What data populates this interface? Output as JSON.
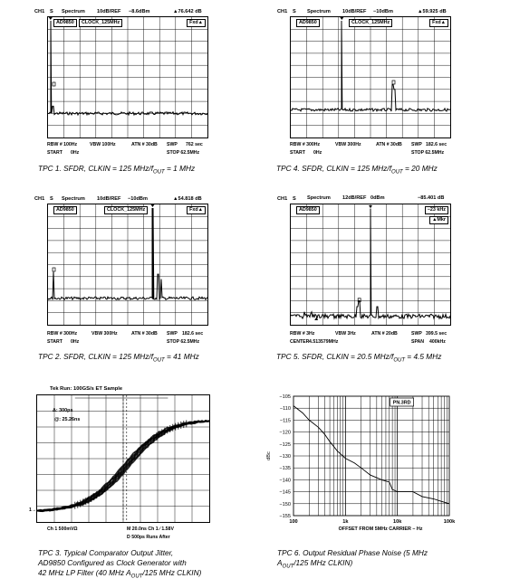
{
  "colors": {
    "ink": "#000000",
    "paper": "#ffffff"
  },
  "tpc1": {
    "ch": "CH1",
    "s": "S",
    "mode": "Spectrum",
    "scale": "10dB/REF",
    "ref": "−8.6dBm",
    "marker": "▲76.642 dB",
    "device": "AD9850",
    "clock": "CLOCK_125MHz",
    "fxd": "Fxd▲",
    "rbw": "RBW # 100Hz",
    "vbw": "VBW 100Hz",
    "atn": "ATN # 30dB",
    "swp": "SWP",
    "swp_val": "762 sec",
    "start": "START",
    "start_val": "0Hz",
    "stop": "STOP 62.5MHz",
    "cap_pre": "TPC 1.  SFDR, CLKIN = 125 MHz/f",
    "cap_sub": "OUT",
    "cap_post": " = 1 MHz"
  },
  "tpc2": {
    "ch": "CH1",
    "s": "S",
    "mode": "Spectrum",
    "scale": "10dB/REF",
    "ref": "−10dBm",
    "marker": "▲54.818 dB",
    "device": "AD9850",
    "clock": "CLOCK_125MHz",
    "fxd": "Fxd▲",
    "rbw": "RBW # 300Hz",
    "vbw": "VBW 300Hz",
    "atn": "ATN # 30dB",
    "swp": "SWP",
    "swp_val": "182.6 sec",
    "start": "START",
    "start_val": "0Hz",
    "stop": "STOP 62.5MHz",
    "cap_pre": "TPC 2.  SFDR, CLKIN = 125 MHz/f",
    "cap_sub": "OUT",
    "cap_post": " = 41 MHz"
  },
  "tpc3": {
    "title": "Tek Run: 100GS/s ET Sample",
    "delta": "Δ: 300ps",
    "at": "@: 25.26ns",
    "ch1": "Ch 1   500mVΩ",
    "time": "M 20.0ns  Ch 1 ∕   1.58V",
    "d": "D  500ps   Runs After",
    "gnd": "1→",
    "cap_l1": "TPC 3.  Typical Comparator Output Jitter,",
    "cap_l2": "AD9850 Configured as Clock Generator with",
    "cap_l3_pre": "42 MHz LP Filter (40 MHz A",
    "cap_l3_sub": "OUT",
    "cap_l3_post": "/125 MHz CLKIN)"
  },
  "tpc4": {
    "ch": "CH1",
    "s": "S",
    "mode": "Spectrum",
    "scale": "10dB/REF",
    "ref": "−10dBm",
    "marker": "▲59.925 dB",
    "device": "AD9850",
    "clock": "CLOCK_125MHz",
    "fxd": "Fxd▲",
    "rbw": "RBW # 300Hz",
    "vbw": "VBW 300Hz",
    "atn": "ATN # 30dB",
    "swp": "SWP",
    "swp_val": "182.6 sec",
    "start": "START",
    "start_val": "0Hz",
    "stop": "STOP 62.5MHz",
    "cap_pre": "TPC 4.  SFDR, CLKIN = 125 MHz/f",
    "cap_sub": "OUT",
    "cap_post": " = 20 MHz"
  },
  "tpc5": {
    "ch": "CH1",
    "s": "S",
    "mode": "Spectrum",
    "scale": "12dB/REF",
    "ref": "0dBm",
    "marker": "−85.401 dB",
    "device": "AD9850",
    "freq": "−23 kHz",
    "mkr": "▲Mkr",
    "rbw": "RBW # 3Hz",
    "vbw": "VBW 3Hz",
    "atn": "ATN # 20dB",
    "swp": "SWP",
    "swp_val": "399.5 sec",
    "center": "CENTER",
    "center_val": "4.513579MHz",
    "span": "SPAN",
    "span_val": "400kHz",
    "cap_pre": "TPC 5.  SFDR, CLKIN = 20.5 MHz/f",
    "cap_sub": "OUT",
    "cap_post": " = 4.5 MHz"
  },
  "tpc6": {
    "legend": "PN.3RD",
    "ylabel": "dBc",
    "xlabel": "OFFSET FROM 5MHz CARRIER – Hz",
    "cap_l1": "TPC 6.  Output Residual Phase Noise (5 MHz",
    "cap_l2_pre": "A",
    "cap_l2_sub": "OUT",
    "cap_l2_post": "/125 MHz CLKIN)"
  },
  "chart_data": [
    {
      "type": "line",
      "title": "",
      "x_range_mhz": [
        0,
        62.5
      ],
      "y_divisions": 10,
      "fundamental_mhz": 1,
      "marker_db": 76.642
    },
    {
      "type": "line",
      "title": "",
      "x_range_mhz": [
        0,
        62.5
      ],
      "y_divisions": 10,
      "fundamental_mhz": 41,
      "marker_db": 54.818
    },
    {
      "type": "line",
      "title": "",
      "x_label": "time",
      "transition": "rising edge, jitter band",
      "delta_ps": 300
    },
    {
      "type": "line",
      "title": "",
      "x_range_mhz": [
        0,
        62.5
      ],
      "y_divisions": 10,
      "fundamental_mhz": 20,
      "marker_db": 59.925
    },
    {
      "type": "line",
      "title": "",
      "center_mhz": 4.513579,
      "span_khz": 400,
      "fundamental_mhz": 4.5,
      "marker_db": -85.401
    },
    {
      "type": "line",
      "title": "",
      "xscale": "log",
      "xlim": [
        100,
        100000
      ],
      "ylim": [
        -155,
        -105
      ],
      "xticks": [
        "100",
        "1k",
        "10k",
        "100k"
      ],
      "yticks": [
        "−105",
        "−110",
        "−115",
        "−120",
        "−125",
        "−130",
        "−135",
        "−140",
        "−145",
        "−150",
        "−155"
      ],
      "series": [
        {
          "name": "PN.3RD",
          "x": [
            100,
            150,
            200,
            300,
            400,
            500,
            700,
            1000,
            1500,
            2000,
            3000,
            5000,
            7000,
            8000,
            10000,
            15000,
            20000,
            30000,
            50000,
            70000,
            100000
          ],
          "y": [
            -109,
            -112,
            -115,
            -118,
            -121,
            -124,
            -128,
            -131,
            -133,
            -135,
            -138,
            -140,
            -141,
            -144,
            -145,
            -145,
            -145,
            -147,
            -148,
            -149,
            -150
          ]
        }
      ]
    }
  ]
}
